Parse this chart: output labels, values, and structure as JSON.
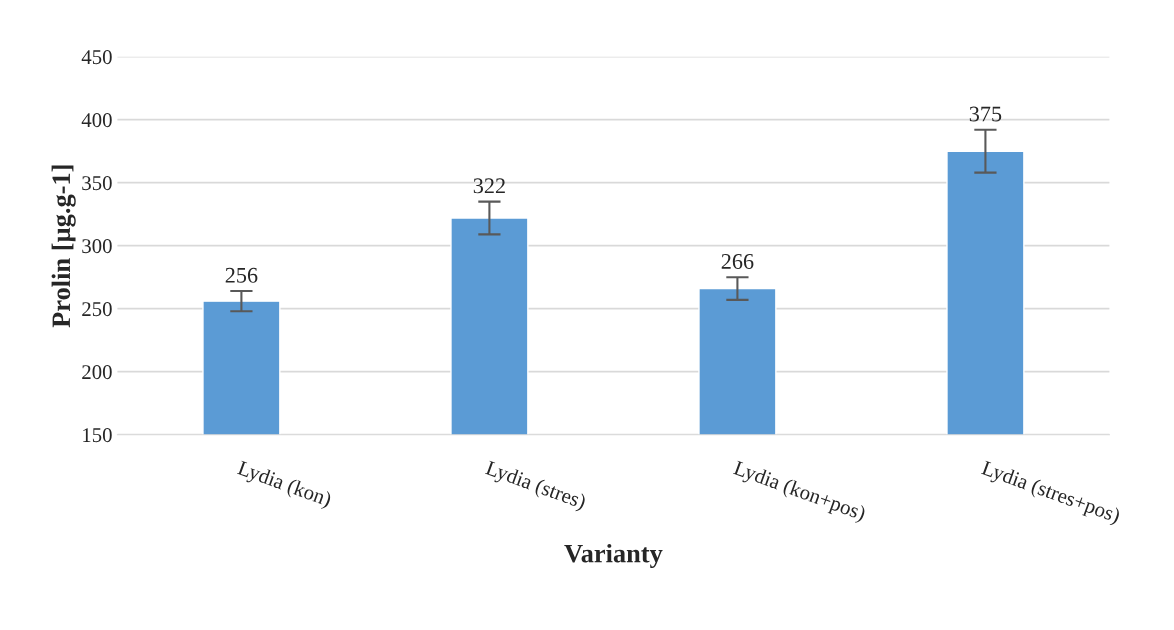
{
  "chart_data": {
    "type": "bar",
    "xlabel": "Varianty",
    "ylabel": "Prolin [µg.g-1]",
    "categories": [
      "Lydia (kon)",
      "Lydia (stres)",
      "Lydia (kon+pos)",
      "Lydia (stres+pos)"
    ],
    "values": [
      256,
      322,
      266,
      375
    ],
    "errors": [
      8,
      13,
      9,
      17
    ],
    "color": "#5b9bd5",
    "ylim": [
      150,
      450
    ],
    "yticks": [
      150,
      200,
      250,
      300,
      350,
      400,
      450
    ],
    "grid": "y",
    "data_labels": true,
    "legend": false
  }
}
